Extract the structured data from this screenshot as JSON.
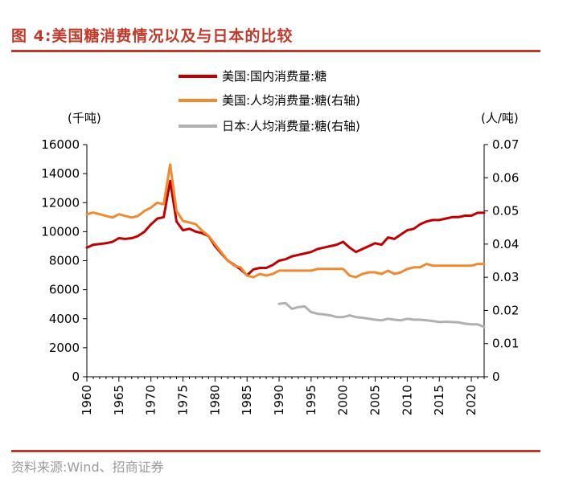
{
  "figure": {
    "title": "图 4:美国糖消费情况以及与日本的比较",
    "source": "资料来源:Wind、招商证券"
  },
  "chart_data": {
    "type": "line",
    "left_axis": {
      "unit": "(千吨)",
      "range": [
        0,
        16000
      ],
      "ticks": [
        "0",
        "2000",
        "4000",
        "6000",
        "8000",
        "10000",
        "12000",
        "14000",
        "16000"
      ]
    },
    "right_axis": {
      "unit": "(人/吨)",
      "range": [
        0,
        0.07
      ],
      "ticks": [
        "0",
        "0.01",
        "0.02",
        "0.03",
        "0.04",
        "0.05",
        "0.06",
        "0.07"
      ]
    },
    "x_axis": {
      "range": [
        1960,
        2022
      ],
      "ticks": [
        "1960",
        "1965",
        "1970",
        "1975",
        "1980",
        "1985",
        "1990",
        "1995",
        "2000",
        "2005",
        "2010",
        "2015",
        "2020"
      ]
    },
    "grid": false,
    "legend_position": "top-right",
    "series": [
      {
        "name": "美国:国内消费量:糖",
        "axis": "left",
        "color": "#c00000",
        "x": [
          1960,
          1961,
          1962,
          1963,
          1964,
          1965,
          1966,
          1967,
          1968,
          1969,
          1970,
          1971,
          1972,
          1973,
          1974,
          1975,
          1976,
          1977,
          1978,
          1979,
          1980,
          1981,
          1982,
          1983,
          1984,
          1985,
          1986,
          1987,
          1988,
          1989,
          1990,
          1991,
          1992,
          1993,
          1994,
          1995,
          1996,
          1997,
          1998,
          1999,
          2000,
          2001,
          2002,
          2003,
          2004,
          2005,
          2006,
          2007,
          2008,
          2009,
          2010,
          2011,
          2012,
          2013,
          2014,
          2015,
          2016,
          2017,
          2018,
          2019,
          2020,
          2021,
          2022
        ],
        "y": [
          8900,
          9100,
          9150,
          9200,
          9300,
          9550,
          9500,
          9550,
          9700,
          10000,
          10500,
          10900,
          11000,
          13500,
          10700,
          10100,
          10200,
          10000,
          9900,
          9700,
          9000,
          8500,
          8000,
          7700,
          7400,
          7000,
          7400,
          7500,
          7500,
          7700,
          8000,
          8100,
          8300,
          8400,
          8500,
          8600,
          8800,
          8900,
          9000,
          9100,
          9300,
          8900,
          8600,
          8800,
          9000,
          9200,
          9100,
          9600,
          9500,
          9800,
          10100,
          10200,
          10500,
          10700,
          10800,
          10800,
          10900,
          11000,
          11000,
          11100,
          11100,
          11300,
          11300
        ]
      },
      {
        "name": "美国:人均消费量:糖(右轴)",
        "axis": "right",
        "color": "#f08a30",
        "x": [
          1960,
          1961,
          1962,
          1963,
          1964,
          1965,
          1966,
          1967,
          1968,
          1969,
          1970,
          1971,
          1972,
          1973,
          1974,
          1975,
          1976,
          1977,
          1978,
          1979,
          1980,
          1981,
          1982,
          1983,
          1984,
          1985,
          1986,
          1987,
          1988,
          1989,
          1990,
          1991,
          1992,
          1993,
          1994,
          1995,
          1996,
          1997,
          1998,
          1999,
          2000,
          2001,
          2002,
          2003,
          2004,
          2005,
          2006,
          2007,
          2008,
          2009,
          2010,
          2011,
          2012,
          2013,
          2014,
          2015,
          2016,
          2017,
          2018,
          2019,
          2020,
          2021,
          2022
        ],
        "y": [
          0.049,
          0.0495,
          0.049,
          0.0485,
          0.048,
          0.049,
          0.0485,
          0.048,
          0.0485,
          0.05,
          0.051,
          0.0525,
          0.052,
          0.064,
          0.05,
          0.047,
          0.0465,
          0.046,
          0.044,
          0.0425,
          0.04,
          0.0375,
          0.035,
          0.0335,
          0.033,
          0.0305,
          0.03,
          0.031,
          0.0305,
          0.031,
          0.032,
          0.032,
          0.032,
          0.032,
          0.032,
          0.032,
          0.0325,
          0.0325,
          0.0325,
          0.0325,
          0.0325,
          0.0305,
          0.03,
          0.031,
          0.0315,
          0.0315,
          0.031,
          0.032,
          0.031,
          0.0315,
          0.0325,
          0.033,
          0.033,
          0.034,
          0.0335,
          0.0335,
          0.0335,
          0.0335,
          0.0335,
          0.0335,
          0.0335,
          0.034,
          0.034
        ]
      },
      {
        "name": "日本:人均消费量:糖(右轴)",
        "axis": "right",
        "color": "#b0b0b0",
        "x": [
          1990,
          1991,
          1992,
          1993,
          1994,
          1995,
          1996,
          1997,
          1998,
          1999,
          2000,
          2001,
          2002,
          2003,
          2004,
          2005,
          2006,
          2007,
          2008,
          2009,
          2010,
          2011,
          2012,
          2013,
          2014,
          2015,
          2016,
          2017,
          2018,
          2019,
          2020,
          2021,
          2022
        ],
        "y": [
          0.022,
          0.0222,
          0.0205,
          0.021,
          0.0212,
          0.0195,
          0.019,
          0.0188,
          0.0185,
          0.018,
          0.018,
          0.0185,
          0.018,
          0.0178,
          0.0175,
          0.0172,
          0.017,
          0.0175,
          0.0172,
          0.017,
          0.0175,
          0.0172,
          0.0172,
          0.017,
          0.0168,
          0.0165,
          0.0166,
          0.0165,
          0.0164,
          0.016,
          0.0158,
          0.0158,
          0.015
        ]
      }
    ]
  }
}
